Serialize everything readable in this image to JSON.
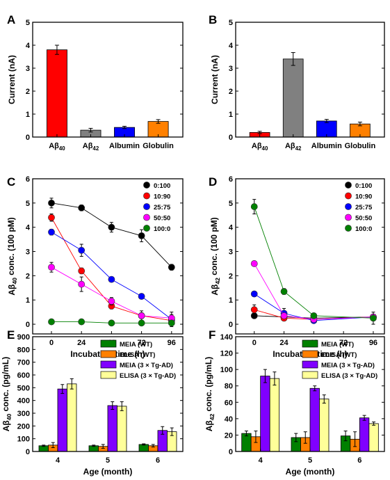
{
  "chart_data": [
    {
      "panel": "A",
      "type": "bar",
      "categories": [
        "Aβ40",
        "Aβ42",
        "Albumin",
        "Globulin"
      ],
      "values": [
        3.8,
        0.3,
        0.42,
        0.68
      ],
      "errors": [
        0.2,
        0.08,
        0.05,
        0.08
      ],
      "colors": [
        "#ff0000",
        "#808080",
        "#0000ff",
        "#ff8000"
      ],
      "xlabel": "",
      "ylabel": "Current (nA)",
      "ylim": [
        0,
        5
      ],
      "yticks": [
        0,
        1,
        2,
        3,
        4,
        5
      ]
    },
    {
      "panel": "B",
      "type": "bar",
      "categories": [
        "Aβ40",
        "Aβ42",
        "Albumin",
        "Globulin"
      ],
      "values": [
        0.2,
        3.4,
        0.7,
        0.57
      ],
      "errors": [
        0.05,
        0.28,
        0.07,
        0.08
      ],
      "colors": [
        "#ff0000",
        "#808080",
        "#0000ff",
        "#ff8000"
      ],
      "xlabel": "",
      "ylabel": "Current (nA)",
      "ylim": [
        0,
        5
      ],
      "yticks": [
        0,
        1,
        2,
        3,
        4,
        5
      ]
    },
    {
      "panel": "C",
      "type": "line",
      "x": [
        0,
        24,
        48,
        72,
        96
      ],
      "xlabel": "Incubation time (h)",
      "ylabel": "Aβ40 conc. (100 pM)",
      "xlim": [
        -15,
        105
      ],
      "ylim": [
        -0.4,
        6
      ],
      "yticks": [
        0,
        1,
        2,
        3,
        4,
        5,
        6
      ],
      "legend_position": "top-right",
      "series": [
        {
          "name": "0:100",
          "color": "#000000",
          "values": [
            5.0,
            4.8,
            4.0,
            3.65,
            2.35
          ],
          "errors": [
            0.2,
            0.12,
            0.2,
            0.25,
            0.12
          ]
        },
        {
          "name": "10:90",
          "color": "#ff0000",
          "values": [
            4.4,
            2.2,
            0.75,
            0.35,
            0.15
          ],
          "errors": [
            0.15,
            0.12,
            0.12,
            0.12,
            0.12
          ]
        },
        {
          "name": "25:75",
          "color": "#0000ff",
          "values": [
            3.8,
            3.05,
            1.85,
            1.15,
            0.2
          ],
          "errors": [
            0.12,
            0.25,
            0.1,
            0.1,
            0.3
          ]
        },
        {
          "name": "50:50",
          "color": "#ff00ff",
          "values": [
            2.35,
            1.65,
            0.95,
            0.35,
            0.25
          ],
          "errors": [
            0.2,
            0.3,
            0.15,
            0.2,
            0.15
          ]
        },
        {
          "name": "100:0",
          "color": "#008000",
          "values": [
            0.1,
            0.1,
            0.05,
            0.05,
            0.05
          ],
          "errors": [
            0.05,
            0.05,
            0.05,
            0.05,
            0.05
          ]
        }
      ]
    },
    {
      "panel": "D",
      "type": "line",
      "x": [
        0,
        24,
        48,
        96
      ],
      "xlabel": "Incubation time (h)",
      "ylabel": "Aβ42 conc. (100 pM)",
      "xlim": [
        -15,
        105
      ],
      "xticks": [
        0,
        24,
        48,
        72,
        96
      ],
      "ylim": [
        -0.4,
        6
      ],
      "yticks": [
        0,
        1,
        2,
        3,
        4,
        5,
        6
      ],
      "legend_position": "top-right",
      "series": [
        {
          "name": "0:100",
          "color": "#000000",
          "values": [
            0.35,
            0.3,
            0.25,
            0.3
          ],
          "errors": [
            0.05,
            0.05,
            0.05,
            0.05
          ]
        },
        {
          "name": "10:90",
          "color": "#ff0000",
          "values": [
            0.6,
            0.25,
            0.2,
            0.3
          ],
          "errors": [
            0.2,
            0.1,
            0.05,
            0.1
          ]
        },
        {
          "name": "25:75",
          "color": "#0000ff",
          "values": [
            1.25,
            0.45,
            0.15,
            0.3
          ],
          "errors": [
            0.1,
            0.2,
            0.05,
            0.1
          ]
        },
        {
          "name": "50:50",
          "color": "#ff00ff",
          "values": [
            2.5,
            0.35,
            0.2,
            0.3
          ],
          "errors": [
            0.1,
            0.1,
            0.05,
            0.1
          ]
        },
        {
          "name": "100:0",
          "color": "#008000",
          "values": [
            4.85,
            1.35,
            0.35,
            0.25
          ],
          "errors": [
            0.3,
            0.12,
            0.1,
            0.25
          ]
        }
      ]
    },
    {
      "panel": "E",
      "type": "bar",
      "categories": [
        "4",
        "5",
        "6"
      ],
      "xlabel": "Age (month)",
      "ylabel": "Aβ40 conc. (pg/mL)",
      "ylim": [
        0,
        900
      ],
      "yticks": [
        0,
        100,
        200,
        300,
        400,
        500,
        600,
        700,
        800,
        900
      ],
      "legend_position": "top-right",
      "series": [
        {
          "name": "MEIA (WT)",
          "color": "#008000",
          "values": [
            45,
            45,
            55
          ],
          "errors": [
            5,
            5,
            5
          ]
        },
        {
          "name": "ELISA (WT)",
          "color": "#ff8000",
          "values": [
            50,
            40,
            45
          ],
          "errors": [
            20,
            15,
            10
          ]
        },
        {
          "name": "MEIA (3 × Tg-AD)",
          "color": "#8000ff",
          "values": [
            490,
            360,
            165
          ],
          "errors": [
            35,
            30,
            30
          ]
        },
        {
          "name": "ELISA (3 × Tg-AD)",
          "color": "#ffff99",
          "values": [
            530,
            355,
            155
          ],
          "errors": [
            40,
            35,
            30
          ]
        }
      ]
    },
    {
      "panel": "F",
      "type": "bar",
      "categories": [
        "4",
        "5",
        "6"
      ],
      "xlabel": "Age (month)",
      "ylabel": "Aβ42 conc. (pg/mL)",
      "ylim": [
        0,
        140
      ],
      "yticks": [
        0,
        20,
        40,
        60,
        80,
        100,
        120,
        140
      ],
      "legend_position": "top-right",
      "series": [
        {
          "name": "MEIA (WT)",
          "color": "#008000",
          "values": [
            22,
            17,
            19
          ],
          "errors": [
            3,
            5,
            6
          ]
        },
        {
          "name": "ELISA (WT)",
          "color": "#ff8000",
          "values": [
            18,
            17,
            15
          ],
          "errors": [
            7,
            7,
            9
          ]
        },
        {
          "name": "MEIA (3 × Tg-AD)",
          "color": "#8000ff",
          "values": [
            92,
            77,
            41
          ],
          "errors": [
            8,
            3,
            3
          ]
        },
        {
          "name": "ELISA (3 × Tg-AD)",
          "color": "#ffff99",
          "values": [
            89,
            64,
            34
          ],
          "errors": [
            8,
            5,
            2
          ]
        }
      ]
    }
  ]
}
